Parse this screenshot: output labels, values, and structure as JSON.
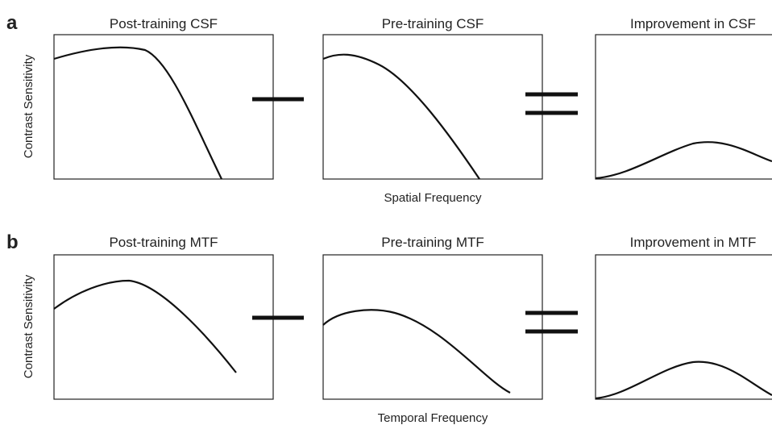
{
  "panels": [
    {
      "label": "a",
      "titles": [
        "Post-training CSF",
        "Pre-training CSF",
        "Improvement in CSF"
      ],
      "y_label": "Contrast Sensitivity",
      "x_label": "Spatial Frequency"
    },
    {
      "label": "b",
      "titles": [
        "Post-training MTF",
        "Pre-training MTF",
        "Improvement in MTF"
      ],
      "y_label": "Contrast Sensitivity",
      "x_label": "Temporal Frequency"
    }
  ]
}
